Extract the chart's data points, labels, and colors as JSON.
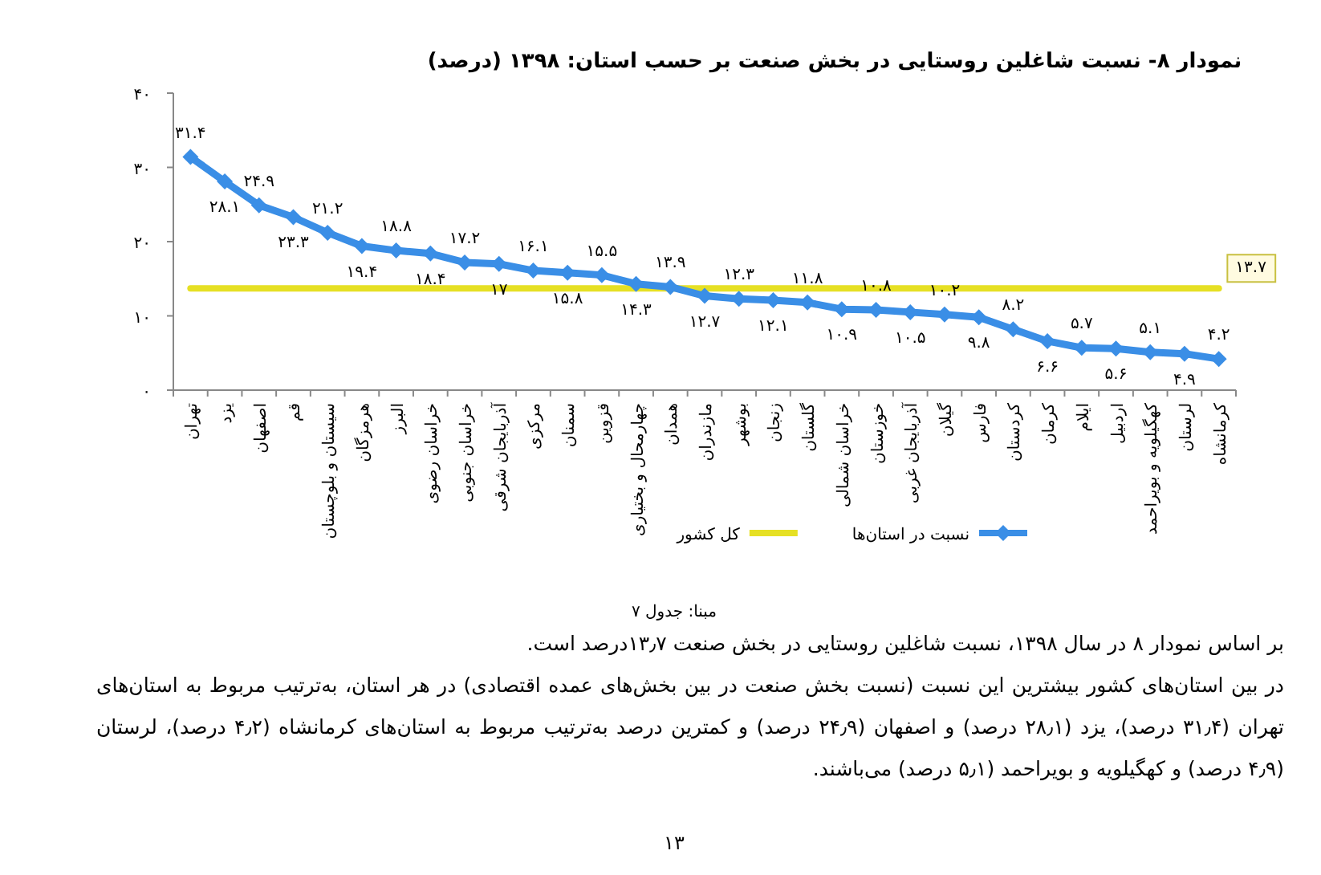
{
  "chart_data": {
    "type": "line",
    "title": "نمودار ۸- نسبت شاغلین روستایی در بخش صنعت بر حسب استان: ۱۳۹۸ (درصد)",
    "categories": [
      "تهران",
      "یزد",
      "اصفهان",
      "قم",
      "سیستان و بلوچستان",
      "هرمزگان",
      "البرز",
      "خراسان رضوی",
      "خراسان جنوبی",
      "آذربایجان شرقی",
      "مرکزی",
      "سمنان",
      "قزوین",
      "چهارمحال و بختیاری",
      "همدان",
      "مازندران",
      "بوشهر",
      "زنجان",
      "گلستان",
      "خراسان شمالی",
      "خوزستان",
      "آذربایجان غربی",
      "گیلان",
      "فارس",
      "کردستان",
      "کرمان",
      "ایلام",
      "اردبیل",
      "کهگیلویه و بویراحمد",
      "لرستان",
      "کرمانشاه"
    ],
    "series": [
      {
        "name": "نسبت در استان‌ها",
        "type": "line",
        "color": "#3a8ee6",
        "marker": "diamond",
        "values": [
          31.4,
          28.1,
          24.9,
          23.3,
          21.2,
          19.4,
          18.8,
          18.4,
          17.2,
          17,
          16.1,
          15.8,
          15.5,
          14.3,
          13.9,
          12.7,
          12.3,
          12.1,
          11.8,
          10.9,
          10.8,
          10.5,
          10.2,
          9.8,
          8.2,
          6.6,
          5.7,
          5.6,
          5.1,
          4.9,
          4.2
        ],
        "value_labels": [
          "۳۱.۴",
          "۲۸.۱",
          "۲۴.۹",
          "۲۳.۳",
          "۲۱.۲",
          "۱۹.۴",
          "۱۸.۸",
          "۱۸.۴",
          "۱۷.۲",
          "۱۷",
          "۱۶.۱",
          "۱۵.۸",
          "۱۵.۵",
          "۱۴.۳",
          "۱۳.۹",
          "۱۲.۷",
          "۱۲.۳",
          "۱۲.۱",
          "۱۱.۸",
          "۱۰.۹",
          "۱۰.۸",
          "۱۰.۵",
          "۱۰.۲",
          "۹.۸",
          "۸.۲",
          "۶.۶",
          "۵.۷",
          "۵.۶",
          "۵.۱",
          "۴.۹",
          "۴.۲"
        ]
      },
      {
        "name": "کل کشور",
        "type": "line",
        "color": "#e6e024",
        "marker": "none",
        "values": [
          13.7,
          13.7,
          13.7,
          13.7,
          13.7,
          13.7,
          13.7,
          13.7,
          13.7,
          13.7,
          13.7,
          13.7,
          13.7,
          13.7,
          13.7,
          13.7,
          13.7,
          13.7,
          13.7,
          13.7,
          13.7,
          13.7,
          13.7,
          13.7,
          13.7,
          13.7,
          13.7,
          13.7,
          13.7,
          13.7,
          13.7
        ]
      }
    ],
    "ylim": [
      0,
      40
    ],
    "yticks": [
      {
        "value": 0,
        "label": "۰"
      },
      {
        "value": 10,
        "label": "۱۰"
      },
      {
        "value": 20,
        "label": "۲۰"
      },
      {
        "value": 30,
        "label": "۳۰"
      },
      {
        "value": 40,
        "label": "۴۰"
      }
    ],
    "grid": false,
    "legend": "bottom",
    "annotations": [
      {
        "text": "۱۳.۷",
        "x": "کرمانشاه",
        "y": 13.7
      },
      "مبنا: جدول ۷",
      "بر اساس نمودار ۸ در سال ۱۳۹۸، نسبت شاغلین روستایی در بخش صنعت ۱۳٫۷درصد است.",
      "در بین استان‌های کشور بیشترین این نسبت (نسبت بخش صنعت در بین بخش‌های عمده اقتصادی) در هر استان، به‌ترتیب مربوط به استان‌های تهران (۳۱٫۴ درصد)، یزد (۲۸٫۱ درصد) و اصفهان (۲۴٫۹ درصد) و کمترین درصد به‌ترتیب مربوط به استان‌های کرمانشاه (۴٫۲ درصد)، لرستان (۴٫۹ درصد) و کهگیلویه و بویراحمد (۵٫۱ درصد) می‌باشند.",
      "۱۳"
    ]
  }
}
